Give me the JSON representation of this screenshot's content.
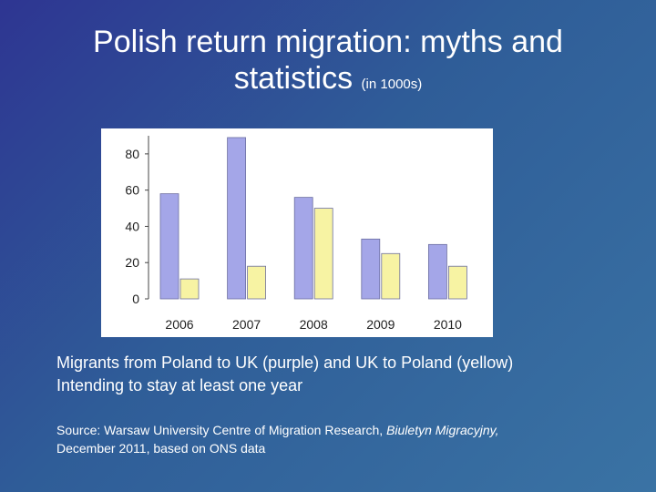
{
  "slide": {
    "title_main": "Polish return migration: myths and statistics",
    "title_unit": "(in 1000s)",
    "caption_line1": "Migrants from Poland to UK  (purple) and UK to Poland (yellow)",
    "caption_line2": "Intending to stay at least one year",
    "source_prefix": "Source: Warsaw University Centre of Migration Research,",
    "source_journal": "Biuletyn Migracyjny,",
    "source_suffix": "December 2011, based on ONS data"
  },
  "chart_data": {
    "type": "bar",
    "categories": [
      "2006",
      "2007",
      "2008",
      "2009",
      "2010"
    ],
    "series": [
      {
        "values": [
          58,
          89,
          56,
          33,
          30
        ],
        "color": "#a4a6e8"
      },
      {
        "values": [
          11,
          18,
          50,
          25,
          18
        ],
        "color": "#f7f3a3"
      }
    ],
    "ylim": [
      0,
      90
    ],
    "yticks": [
      0,
      20,
      40,
      60,
      80
    ],
    "grid": false,
    "legend": "none"
  }
}
